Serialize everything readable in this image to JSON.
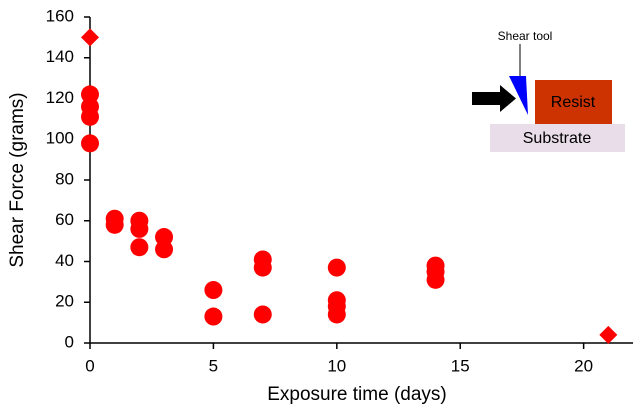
{
  "chart_data": {
    "type": "scatter",
    "xlabel": "Exposure time (days)",
    "ylabel": "Shear Force (grams)",
    "xlim": [
      0,
      22
    ],
    "ylim": [
      0,
      160
    ],
    "xticks": [
      0,
      5,
      10,
      15,
      20
    ],
    "yticks": [
      0,
      20,
      40,
      60,
      80,
      100,
      120,
      140,
      160
    ],
    "series": [
      {
        "color": "#ff0000",
        "marker": "circle",
        "x": [
          0,
          0,
          0,
          0,
          1,
          1,
          2,
          2,
          2,
          3,
          3,
          5,
          5,
          7,
          7,
          7,
          10,
          10,
          10,
          10,
          14,
          14,
          14
        ],
        "y": [
          122,
          116,
          111,
          98,
          61,
          58,
          60,
          56,
          47,
          52,
          46,
          26,
          13,
          41,
          37,
          14,
          37,
          21,
          18,
          14,
          38,
          35,
          31
        ]
      },
      {
        "color": "#ff0000",
        "marker": "diamond",
        "x": [
          0,
          21
        ],
        "y": [
          150,
          4
        ]
      }
    ],
    "annotations": {
      "tool_label": "Shear tool",
      "resist_label": "Resist",
      "substrate_label": "Substrate"
    }
  }
}
